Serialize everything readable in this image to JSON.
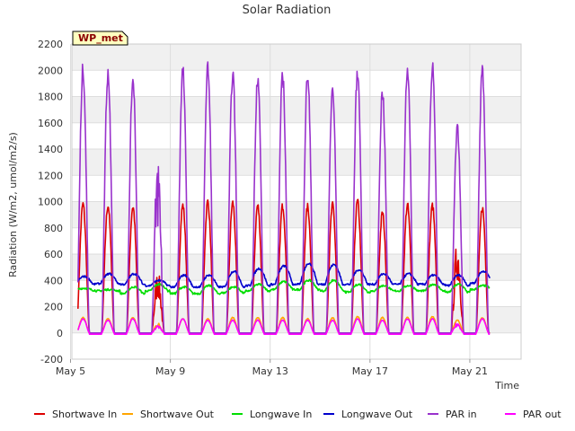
{
  "chart_data": {
    "type": "line",
    "title": "Solar Radiation",
    "xlabel": "Time",
    "ylabel": "Radiation (W/m2, umol/m2/s)",
    "badge": "WP_met",
    "ylim": [
      -200,
      2200
    ],
    "xlim": [
      0,
      18
    ],
    "yticks": [
      -200,
      0,
      200,
      400,
      600,
      800,
      1000,
      1200,
      1400,
      1600,
      1800,
      2000,
      2200
    ],
    "xticks": [
      {
        "day": 0,
        "label": "May 5"
      },
      {
        "day": 4,
        "label": "May 9"
      },
      {
        "day": 8,
        "label": "May 13"
      },
      {
        "day": 12,
        "label": "May 17"
      },
      {
        "day": 16,
        "label": "May 21"
      }
    ],
    "grid": true,
    "legend_position": "bottom",
    "series": [
      {
        "name": "Shortwave In",
        "color": "#dd0000",
        "kind": "peaks",
        "peaks": [
          1010,
          1000,
          990,
          480,
          1000,
          1030,
          1020,
          1000,
          1000,
          990,
          1000,
          1030,
          940,
          1000,
          1000,
          720,
          980
        ],
        "night": 0
      },
      {
        "name": "Shortwave Out",
        "color": "#ffa500",
        "kind": "peaks",
        "peaks": [
          120,
          110,
          120,
          80,
          110,
          110,
          120,
          120,
          120,
          110,
          120,
          130,
          120,
          120,
          130,
          100,
          120
        ],
        "night": 0
      },
      {
        "name": "Longwave In",
        "color": "#00dd00",
        "kind": "daily",
        "day_min": [
          325,
          320,
          300,
          320,
          300,
          300,
          305,
          320,
          330,
          330,
          320,
          310,
          320,
          320,
          320,
          310,
          330
        ],
        "day_max": [
          340,
          330,
          350,
          370,
          350,
          360,
          350,
          370,
          390,
          400,
          400,
          370,
          360,
          360,
          370,
          370,
          360
        ]
      },
      {
        "name": "Longwave Out",
        "color": "#0000cc",
        "kind": "daily",
        "day_min": [
          370,
          375,
          370,
          360,
          350,
          350,
          350,
          360,
          370,
          370,
          370,
          370,
          370,
          370,
          370,
          360,
          380
        ],
        "day_max": [
          430,
          450,
          450,
          400,
          440,
          440,
          470,
          490,
          510,
          530,
          520,
          480,
          450,
          450,
          440,
          440,
          470
        ]
      },
      {
        "name": "PAR in",
        "color": "#9932cc",
        "kind": "peaks",
        "peaks": [
          2070,
          2040,
          2000,
          1410,
          2050,
          2080,
          2030,
          2010,
          2010,
          2020,
          1910,
          2050,
          1890,
          2080,
          2100,
          1620,
          2040
        ],
        "night": 0
      },
      {
        "name": "PAR out",
        "color": "#ff00ff",
        "kind": "peaks",
        "peaks": [
          110,
          100,
          110,
          60,
          110,
          100,
          100,
          100,
          100,
          100,
          100,
          110,
          100,
          110,
          110,
          80,
          110
        ],
        "night": -10
      }
    ]
  }
}
